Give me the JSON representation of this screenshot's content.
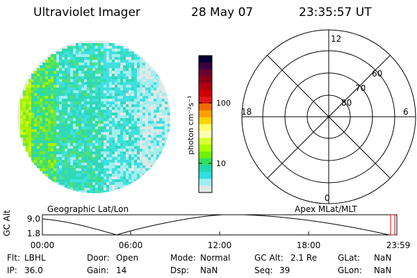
{
  "header": {
    "instrument": "Ultraviolet Imager",
    "date": "28 May 07",
    "time": "23:35:57 UT"
  },
  "colorbar": {
    "unit_label": "photon cm⁻²s⁻¹",
    "ticks": [
      "100",
      "10"
    ],
    "colors": [
      "#000033",
      "#3a0040",
      "#6a0030",
      "#8a0018",
      "#b00010",
      "#cc0000",
      "#e01818",
      "#f06a00",
      "#ffa000",
      "#ffd200",
      "#ffff70",
      "#ffffb0",
      "#d8ff30",
      "#a8ff00",
      "#70f000",
      "#30e060",
      "#20d8b0",
      "#30e0e0",
      "#a0eeee",
      "#e0e8e8"
    ]
  },
  "polar": {
    "lat_labels": [
      "80",
      "70",
      "60"
    ],
    "mlt_labels": {
      "top": "12",
      "left": "18",
      "right": "6",
      "bottom": "0"
    }
  },
  "projections": {
    "left": "Geographic Lat/Lon",
    "right": "Apex MLat/MLT"
  },
  "altitude_plot": {
    "axis_label": "GC Alt",
    "y_ticks": [
      "9.0",
      "1.8"
    ],
    "x_ticks": [
      "00:00",
      "06:00",
      "12:00",
      "18:00",
      "23:59"
    ],
    "marker_color": "#cc0000"
  },
  "info": {
    "flt_label": "Flt:",
    "flt_value": "LBHL",
    "ip_label": "IP:",
    "ip_value": "36.0",
    "door_label": "Door:",
    "door_value": "Open",
    "gain_label": "Gain:",
    "gain_value": "14",
    "mode_label": "Mode:",
    "mode_value": "Normal",
    "dsp_label": "Dsp:",
    "dsp_value": "NaN",
    "gcalt_label": "GC Alt:",
    "gcalt_value": "2.1 Re",
    "seq_label": "Seq:",
    "seq_value": "39",
    "glat_label": "GLat:",
    "glat_value": "NaN",
    "glon_label": "GLon:",
    "glon_value": "NaN"
  }
}
